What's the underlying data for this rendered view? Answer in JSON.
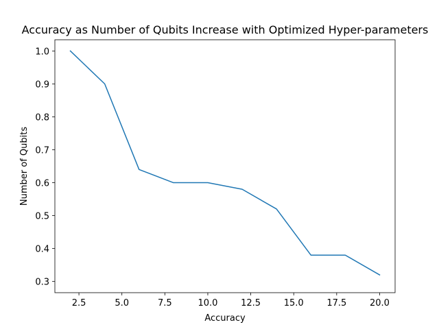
{
  "chart_data": {
    "type": "line",
    "title": "Accuracy as Number of Qubits Increase with Optimized Hyper-parameters",
    "xlabel": "Accuracy",
    "ylabel": "Number of Qubits",
    "xlim": [
      1.1,
      20.9
    ],
    "ylim": [
      0.266,
      1.034
    ],
    "x_ticks": [
      2.5,
      5.0,
      7.5,
      10.0,
      12.5,
      15.0,
      17.5,
      20.0
    ],
    "x_tick_labels": [
      "2.5",
      "5.0",
      "7.5",
      "10.0",
      "12.5",
      "15.0",
      "17.5",
      "20.0"
    ],
    "y_ticks": [
      0.3,
      0.4,
      0.5,
      0.6,
      0.7,
      0.8,
      0.9,
      1.0
    ],
    "y_tick_labels": [
      "0.3",
      "0.4",
      "0.5",
      "0.6",
      "0.7",
      "0.8",
      "0.9",
      "1.0"
    ],
    "grid": false,
    "series": [
      {
        "color": "#1f77b4",
        "x": [
          2,
          4,
          6,
          8,
          10,
          12,
          14,
          16,
          18,
          20
        ],
        "y": [
          1.0,
          0.9,
          0.64,
          0.6,
          0.6,
          0.58,
          0.52,
          0.38,
          0.38,
          0.32
        ]
      }
    ]
  }
}
